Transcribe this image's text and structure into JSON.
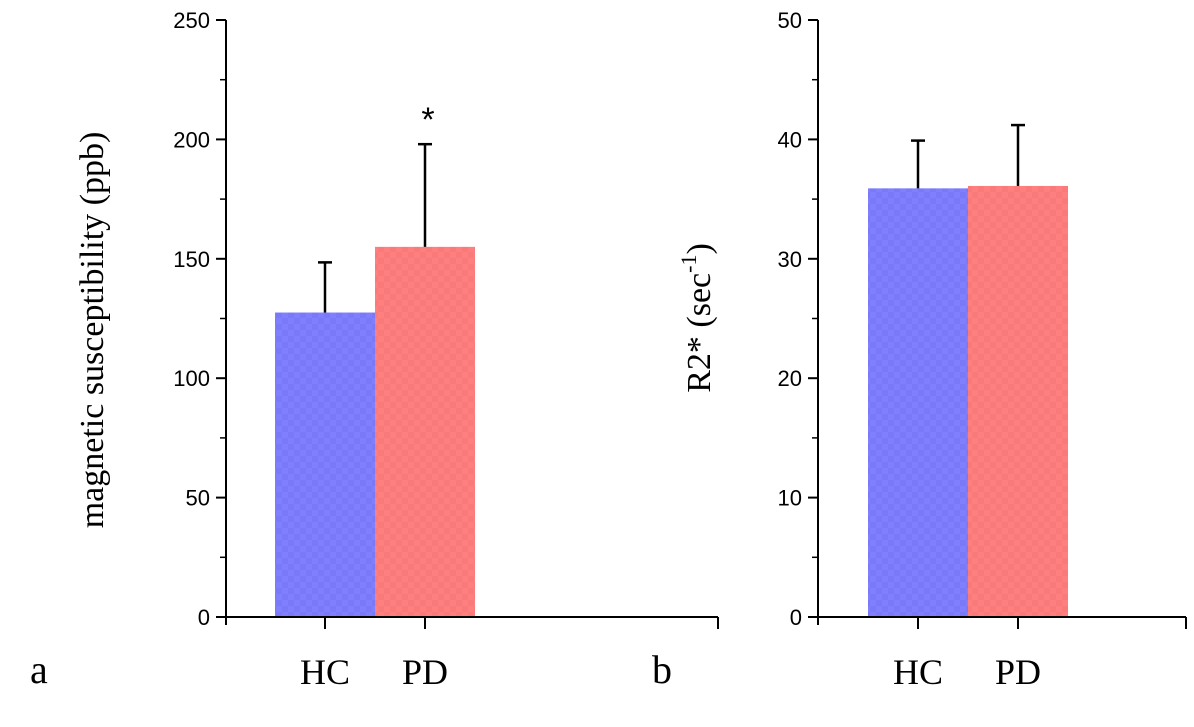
{
  "chart_data": [
    {
      "type": "bar",
      "panel_label": "a",
      "categories": [
        "HC",
        "PD"
      ],
      "values": [
        127.5,
        155
      ],
      "errors": [
        21,
        43
      ],
      "colors": [
        "#8080ff",
        "#ff7f7f"
      ],
      "ylabel": "magnetic susceptibility (ppb)",
      "ylim": [
        0,
        250
      ],
      "yticks": [
        "0",
        "50",
        "100",
        "150",
        "200",
        "250"
      ],
      "annotations": [
        {
          "category": "PD",
          "text": "*"
        }
      ],
      "grid": false
    },
    {
      "type": "bar",
      "panel_label": "b",
      "categories": [
        "HC",
        "PD"
      ],
      "values": [
        35.9,
        36.1
      ],
      "errors": [
        4.0,
        5.1
      ],
      "colors": [
        "#8080ff",
        "#ff7f7f"
      ],
      "ylabel": "R2* (sec",
      "ylabel_sup": "-1",
      "ylabel_tail": ")",
      "ylim": [
        0,
        50
      ],
      "yticks": [
        "0",
        "10",
        "20",
        "30",
        "40",
        "50"
      ],
      "annotations": [],
      "grid": false
    }
  ]
}
